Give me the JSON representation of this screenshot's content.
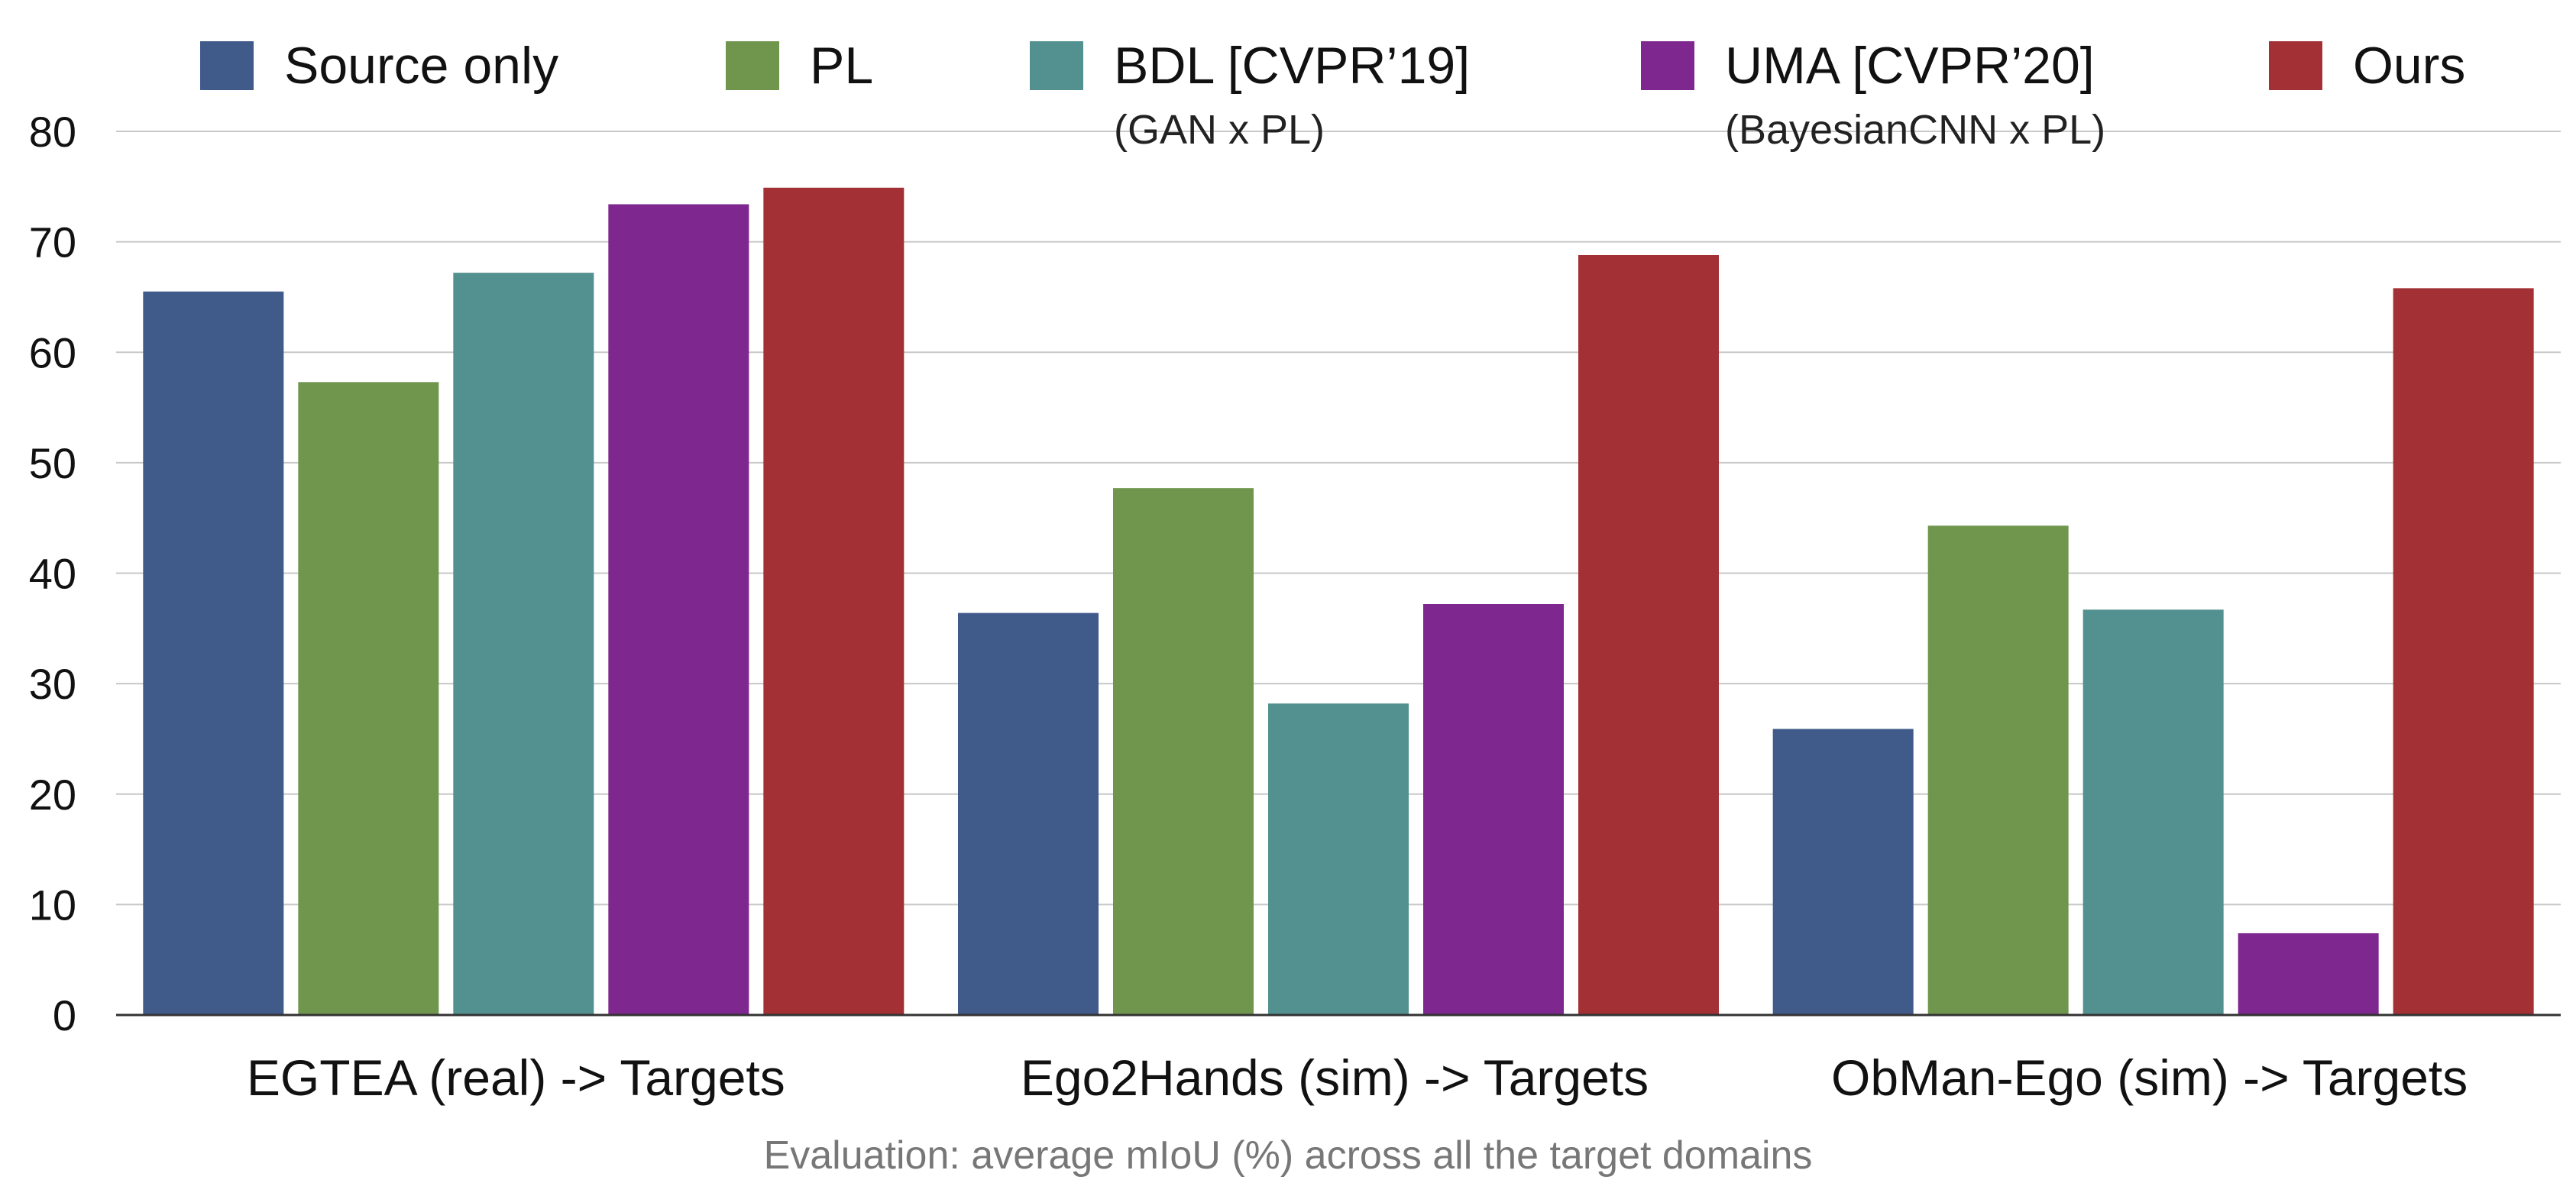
{
  "chart_data": {
    "type": "bar",
    "title": "",
    "xlabel": "Evaluation: average mIoU (%) across all the target domains",
    "ylabel": "",
    "ylim": [
      0,
      80
    ],
    "yticks": [
      0,
      10,
      20,
      30,
      40,
      50,
      60,
      70,
      80
    ],
    "grid": true,
    "legend_position": "top",
    "categories": [
      "EGTEA (real) -> Targets",
      "Ego2Hands (sim) -> Targets",
      "ObMan-Ego (sim) -> Targets"
    ],
    "series": [
      {
        "name": "Source only",
        "subtitle": "",
        "color": "#405A8A",
        "values": [
          65.5,
          36.4,
          25.9
        ]
      },
      {
        "name": "PL",
        "subtitle": "",
        "color": "#70964E",
        "values": [
          57.3,
          47.7,
          44.3
        ]
      },
      {
        "name": "BDL [CVPR’19]",
        "subtitle": "(GAN x PL)",
        "color": "#52918F",
        "values": [
          67.2,
          28.2,
          36.7
        ]
      },
      {
        "name": "UMA [CVPR’20]",
        "subtitle": "(BayesianCNN x PL)",
        "color": "#7E278F",
        "values": [
          73.4,
          37.2,
          7.4
        ]
      },
      {
        "name": "Ours",
        "subtitle": "",
        "color": "#A23034",
        "values": [
          74.9,
          68.8,
          65.8
        ]
      }
    ]
  }
}
